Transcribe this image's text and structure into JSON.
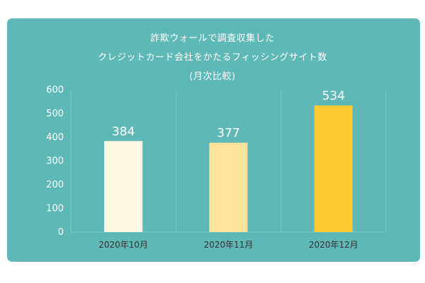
{
  "colors": {
    "card_background": "#5fb8b8",
    "bar_oct": "#fef7e6",
    "bar_nov": "#fde49a",
    "bar_dec": "#fdca33",
    "text": "#ffffff",
    "grid": "#7ec6c6"
  },
  "chart_data": {
    "type": "bar",
    "title_lines": [
      "詐欺ウォールで調査収集した",
      "クレジットカード会社をかたるフィッシングサイト数",
      "(月次比較)"
    ],
    "categories": [
      "2020年10月",
      "2020年11月",
      "2020年12月"
    ],
    "values": [
      384,
      377,
      534
    ],
    "data_labels": [
      "384",
      "377",
      "534"
    ],
    "yticks": [
      "0",
      "100",
      "200",
      "300",
      "400",
      "500",
      "600"
    ],
    "ylim": [
      0,
      600
    ],
    "grid": "vertical separators only",
    "legend": "none",
    "xlabel": "",
    "ylabel": ""
  }
}
